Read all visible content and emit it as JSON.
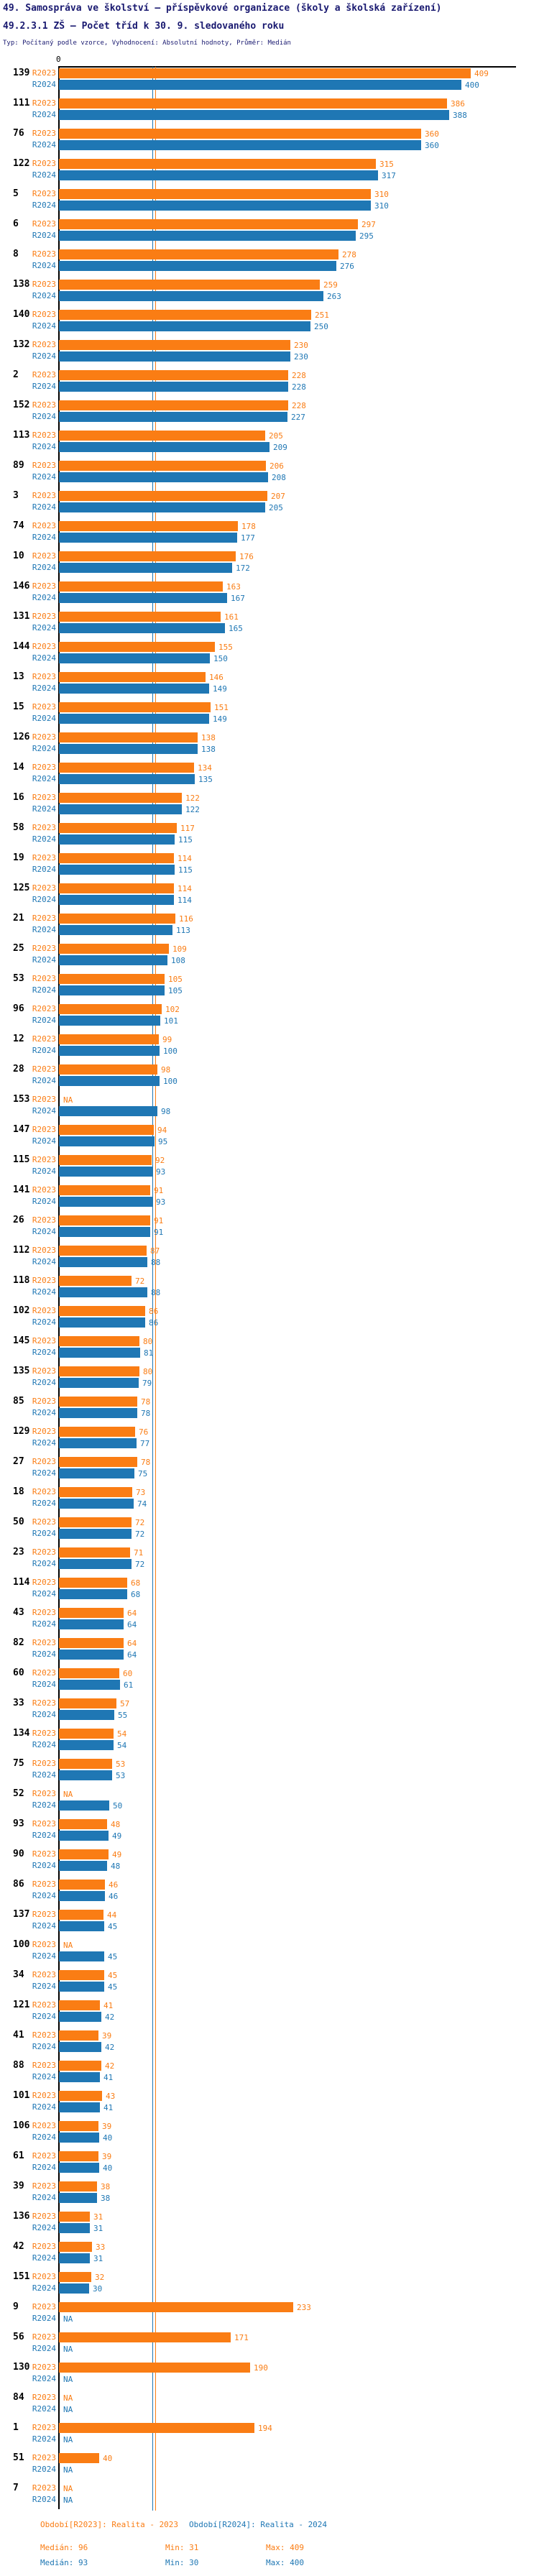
{
  "header": {
    "line1": "49. Samospráva ve školství – příspěvkové organizace (školy a školská zařízení)",
    "line2": "49.2.3.1 ZŠ – Počet tříd k 30. 9. sledovaného roku",
    "line3": "Typ: Počítaný podle vzorce, Vyhodnocení: Absolutní hodnoty, Průměr: Medián"
  },
  "axis": {
    "zero_tick": "0"
  },
  "series_labels": {
    "r2023": "R2023",
    "r2024": "R2024",
    "na": "NA"
  },
  "colors": {
    "r2023": "#FA7D14",
    "r2024": "#1F77B4",
    "title": "#191970",
    "axis": "#000000"
  },
  "chart_data": {
    "type": "bar",
    "orientation": "horizontal",
    "title": "49.2.3.1 ZŠ – Počet tříd k 30. 9. sledovaného roku",
    "value_axis_start": 0,
    "series": [
      {
        "name": "R2023",
        "period": "Realita - 2023",
        "median": 96,
        "min": 31,
        "max": 409
      },
      {
        "name": "R2024",
        "period": "Realita - 2024",
        "median": 93,
        "min": 30,
        "max": 400
      }
    ],
    "rows": [
      {
        "id": "139",
        "r2023": 409,
        "r2024": 400
      },
      {
        "id": "111",
        "r2023": 386,
        "r2024": 388
      },
      {
        "id": "76",
        "r2023": 360,
        "r2024": 360
      },
      {
        "id": "122",
        "r2023": 315,
        "r2024": 317
      },
      {
        "id": "5",
        "r2023": 310,
        "r2024": 310
      },
      {
        "id": "6",
        "r2023": 297,
        "r2024": 295
      },
      {
        "id": "8",
        "r2023": 278,
        "r2024": 276
      },
      {
        "id": "138",
        "r2023": 259,
        "r2024": 263
      },
      {
        "id": "140",
        "r2023": 251,
        "r2024": 250
      },
      {
        "id": "132",
        "r2023": 230,
        "r2024": 230
      },
      {
        "id": "2",
        "r2023": 228,
        "r2024": 228
      },
      {
        "id": "152",
        "r2023": 228,
        "r2024": 227
      },
      {
        "id": "113",
        "r2023": 205,
        "r2024": 209
      },
      {
        "id": "89",
        "r2023": 206,
        "r2024": 208
      },
      {
        "id": "3",
        "r2023": 207,
        "r2024": 205
      },
      {
        "id": "74",
        "r2023": 178,
        "r2024": 177
      },
      {
        "id": "10",
        "r2023": 176,
        "r2024": 172
      },
      {
        "id": "146",
        "r2023": 163,
        "r2024": 167
      },
      {
        "id": "131",
        "r2023": 161,
        "r2024": 165
      },
      {
        "id": "144",
        "r2023": 155,
        "r2024": 150
      },
      {
        "id": "13",
        "r2023": 146,
        "r2024": 149
      },
      {
        "id": "15",
        "r2023": 151,
        "r2024": 149
      },
      {
        "id": "126",
        "r2023": 138,
        "r2024": 138
      },
      {
        "id": "14",
        "r2023": 134,
        "r2024": 135
      },
      {
        "id": "16",
        "r2023": 122,
        "r2024": 122
      },
      {
        "id": "58",
        "r2023": 117,
        "r2024": 115
      },
      {
        "id": "19",
        "r2023": 114,
        "r2024": 115
      },
      {
        "id": "125",
        "r2023": 114,
        "r2024": 114
      },
      {
        "id": "21",
        "r2023": 116,
        "r2024": 113
      },
      {
        "id": "25",
        "r2023": 109,
        "r2024": 108
      },
      {
        "id": "53",
        "r2023": 105,
        "r2024": 105
      },
      {
        "id": "96",
        "r2023": 102,
        "r2024": 101
      },
      {
        "id": "12",
        "r2023": 99,
        "r2024": 100
      },
      {
        "id": "28",
        "r2023": 98,
        "r2024": 100
      },
      {
        "id": "153",
        "r2023": null,
        "r2024": 98
      },
      {
        "id": "147",
        "r2023": 94,
        "r2024": 95
      },
      {
        "id": "115",
        "r2023": 92,
        "r2024": 93
      },
      {
        "id": "141",
        "r2023": 91,
        "r2024": 93
      },
      {
        "id": "26",
        "r2023": 91,
        "r2024": 91
      },
      {
        "id": "112",
        "r2023": 87,
        "r2024": 88
      },
      {
        "id": "118",
        "r2023": 72,
        "r2024": 88
      },
      {
        "id": "102",
        "r2023": 86,
        "r2024": 86
      },
      {
        "id": "145",
        "r2023": 80,
        "r2024": 81
      },
      {
        "id": "135",
        "r2023": 80,
        "r2024": 79
      },
      {
        "id": "85",
        "r2023": 78,
        "r2024": 78
      },
      {
        "id": "129",
        "r2023": 76,
        "r2024": 77
      },
      {
        "id": "27",
        "r2023": 78,
        "r2024": 75
      },
      {
        "id": "18",
        "r2023": 73,
        "r2024": 74
      },
      {
        "id": "50",
        "r2023": 72,
        "r2024": 72
      },
      {
        "id": "23",
        "r2023": 71,
        "r2024": 72
      },
      {
        "id": "114",
        "r2023": 68,
        "r2024": 68
      },
      {
        "id": "43",
        "r2023": 64,
        "r2024": 64
      },
      {
        "id": "82",
        "r2023": 64,
        "r2024": 64
      },
      {
        "id": "60",
        "r2023": 60,
        "r2024": 61
      },
      {
        "id": "33",
        "r2023": 57,
        "r2024": 55
      },
      {
        "id": "134",
        "r2023": 54,
        "r2024": 54
      },
      {
        "id": "75",
        "r2023": 53,
        "r2024": 53
      },
      {
        "id": "52",
        "r2023": null,
        "r2024": 50
      },
      {
        "id": "93",
        "r2023": 48,
        "r2024": 49
      },
      {
        "id": "90",
        "r2023": 49,
        "r2024": 48
      },
      {
        "id": "86",
        "r2023": 46,
        "r2024": 46
      },
      {
        "id": "137",
        "r2023": 44,
        "r2024": 45
      },
      {
        "id": "100",
        "r2023": null,
        "r2024": 45
      },
      {
        "id": "34",
        "r2023": 45,
        "r2024": 45
      },
      {
        "id": "121",
        "r2023": 41,
        "r2024": 42
      },
      {
        "id": "41",
        "r2023": 39,
        "r2024": 42
      },
      {
        "id": "88",
        "r2023": 42,
        "r2024": 41
      },
      {
        "id": "101",
        "r2023": 43,
        "r2024": 41
      },
      {
        "id": "106",
        "r2023": 39,
        "r2024": 40
      },
      {
        "id": "61",
        "r2023": 39,
        "r2024": 40
      },
      {
        "id": "39",
        "r2023": 38,
        "r2024": 38
      },
      {
        "id": "136",
        "r2023": 31,
        "r2024": 31
      },
      {
        "id": "42",
        "r2023": 33,
        "r2024": 31
      },
      {
        "id": "151",
        "r2023": 32,
        "r2024": 30
      },
      {
        "id": "9",
        "r2023": 233,
        "r2024": null
      },
      {
        "id": "56",
        "r2023": 171,
        "r2024": null
      },
      {
        "id": "130",
        "r2023": 190,
        "r2024": null
      },
      {
        "id": "84",
        "r2023": null,
        "r2024": null
      },
      {
        "id": "1",
        "r2023": 194,
        "r2024": null
      },
      {
        "id": "51",
        "r2023": 40,
        "r2024": null
      },
      {
        "id": "7",
        "r2023": null,
        "r2024": null
      }
    ]
  },
  "legend": {
    "r2023_period": "Období[R2023]: Realita - 2023",
    "r2024_period": "Období[R2024]: Realita - 2024",
    "r2023_median": "Medián: 96",
    "r2024_median": "Medián: 93",
    "r2023_min": "Min: 31",
    "r2024_min": "Min: 30",
    "r2023_max": "Max: 409",
    "r2024_max": "Max: 400"
  }
}
